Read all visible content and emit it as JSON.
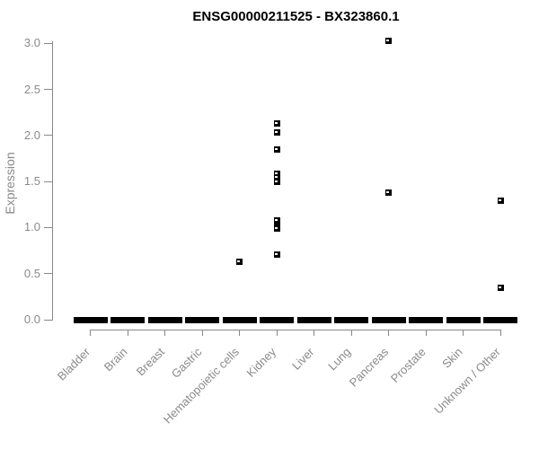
{
  "chart_data": {
    "type": "scatter",
    "title": "ENSG00000211525 - BX323860.1",
    "ylabel": "Expression",
    "xlabel": "",
    "ylim": [
      0.0,
      3.0
    ],
    "yticks": [
      0.0,
      0.5,
      1.0,
      1.5,
      2.0,
      2.5,
      3.0
    ],
    "grid": false,
    "legend": "none",
    "marker": "open-square",
    "categories": [
      "Bladder",
      "Brain",
      "Breast",
      "Gastric",
      "Hematopoietic cells",
      "Kidney",
      "Liver",
      "Lung",
      "Pancreas",
      "Prostate",
      "Skin",
      "Unknown / Other"
    ],
    "groups": [
      {
        "category": "Bladder",
        "zero_cluster": true,
        "points": []
      },
      {
        "category": "Brain",
        "zero_cluster": true,
        "points": []
      },
      {
        "category": "Breast",
        "zero_cluster": true,
        "points": []
      },
      {
        "category": "Gastric",
        "zero_cluster": true,
        "points": []
      },
      {
        "category": "Hematopoietic cells",
        "zero_cluster": true,
        "points": [
          0.63
        ]
      },
      {
        "category": "Kidney",
        "zero_cluster": true,
        "points": [
          2.13,
          2.03,
          1.85,
          1.58,
          1.54,
          1.5,
          1.08,
          1.01,
          0.99,
          0.71
        ]
      },
      {
        "category": "Liver",
        "zero_cluster": true,
        "points": []
      },
      {
        "category": "Lung",
        "zero_cluster": true,
        "points": []
      },
      {
        "category": "Pancreas",
        "zero_cluster": true,
        "points": [
          3.03,
          1.38
        ]
      },
      {
        "category": "Prostate",
        "zero_cluster": true,
        "points": []
      },
      {
        "category": "Skin",
        "zero_cluster": true,
        "points": []
      },
      {
        "category": "Unknown / Other",
        "zero_cluster": true,
        "points": [
          1.29,
          0.35
        ]
      }
    ],
    "colors": {
      "point": "#000000",
      "axis": "#888888",
      "tick_text": "#8a8a8a",
      "title": "#000000",
      "background": "#ffffff"
    }
  }
}
